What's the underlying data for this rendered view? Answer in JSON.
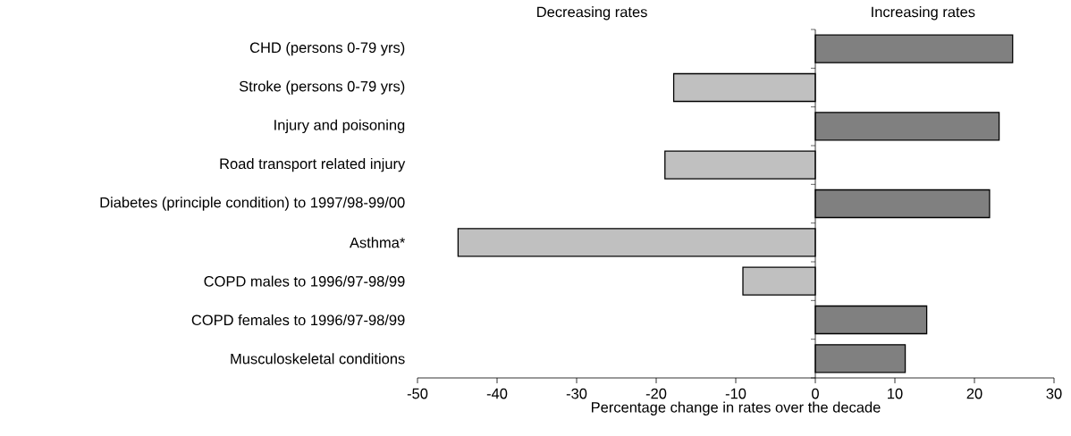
{
  "chart_data": {
    "type": "bar",
    "orientation": "horizontal",
    "categories": [
      "CHD (persons 0-79 yrs)",
      "Stroke (persons 0-79 yrs)",
      "Injury and poisoning",
      "Road transport related injury",
      "Diabetes (principle condition) to 1997/98-99/00",
      "Asthma*",
      "COPD males to 1996/97-98/99",
      "COPD females to 1996/97-98/99",
      "Musculoskeletal conditions"
    ],
    "values": [
      24.8,
      -17.8,
      23.1,
      -18.9,
      21.9,
      -44.9,
      -9.1,
      14.0,
      11.3
    ],
    "colors": [
      "#808080",
      "#c0c0c0",
      "#808080",
      "#c0c0c0",
      "#808080",
      "#c0c0c0",
      "#c0c0c0",
      "#808080",
      "#808080"
    ],
    "xlabel": "Percentage change in rates over the decade",
    "xlim": [
      -50,
      30
    ],
    "xticks": [
      -50,
      -40,
      -30,
      -20,
      -10,
      0,
      10,
      20,
      30
    ],
    "annotations": [
      "Decreasing rates",
      "Increasing rates"
    ]
  }
}
